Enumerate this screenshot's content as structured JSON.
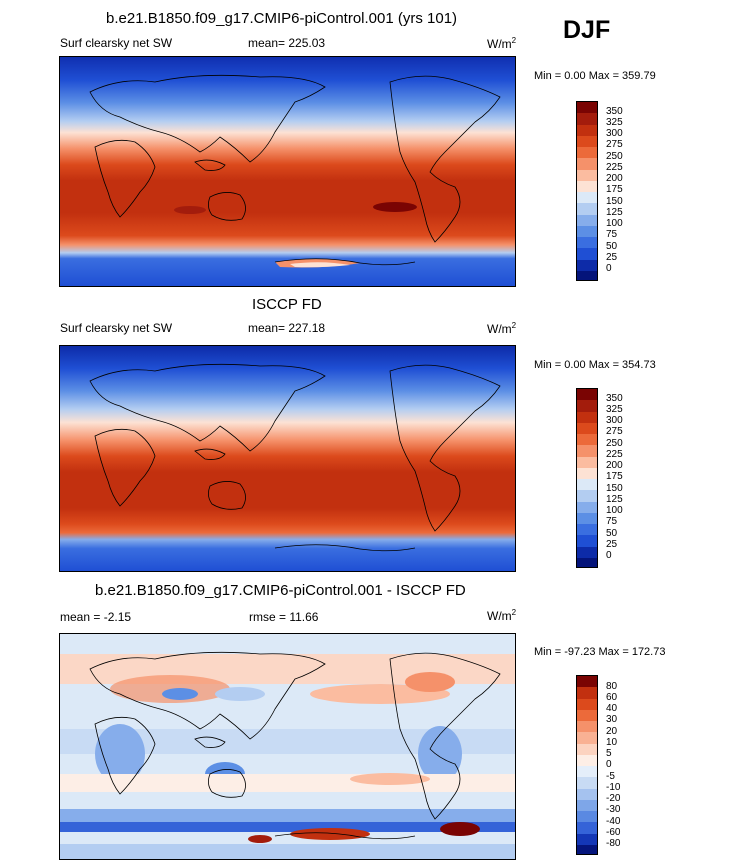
{
  "season": "DJF",
  "panels": [
    {
      "title": "b.e21.B1850.f09_g17.CMIP6-piControl.001 (yrs 101)",
      "left_label": "Surf clearsky net SW",
      "center_label": "mean= 225.03",
      "units": "W/m",
      "units_sup": "2",
      "minmax": "Min =   0.00 Max = 359.79",
      "colorbar": {
        "labels": [
          "350",
          "325",
          "300",
          "275",
          "250",
          "225",
          "200",
          "175",
          "150",
          "125",
          "100",
          "75",
          "50",
          "25",
          "0"
        ],
        "colors": [
          "#7a0403",
          "#a31c0c",
          "#c2300f",
          "#dc4a1c",
          "#ec6a3a",
          "#f5916a",
          "#fbbca0",
          "#fde2d4",
          "#dce9f7",
          "#b3cdf1",
          "#86adeb",
          "#5c8fe5",
          "#3a6ee0",
          "#1f4fd4",
          "#0d2ba8",
          "#04147a"
        ]
      }
    },
    {
      "title": "ISCCP FD",
      "left_label": "Surf clearsky net SW",
      "center_label": "mean= 227.18",
      "units": "W/m",
      "units_sup": "2",
      "minmax": "Min =   0.00 Max = 354.73",
      "colorbar": {
        "labels": [
          "350",
          "325",
          "300",
          "275",
          "250",
          "225",
          "200",
          "175",
          "150",
          "125",
          "100",
          "75",
          "50",
          "25",
          "0"
        ],
        "colors": [
          "#7a0403",
          "#a31c0c",
          "#c2300f",
          "#dc4a1c",
          "#ec6a3a",
          "#f5916a",
          "#fbbca0",
          "#fde2d4",
          "#dce9f7",
          "#b3cdf1",
          "#86adeb",
          "#5c8fe5",
          "#3a6ee0",
          "#1f4fd4",
          "#0d2ba8",
          "#04147a"
        ]
      }
    },
    {
      "title": "b.e21.B1850.f09_g17.CMIP6-piControl.001 - ISCCP FD",
      "left_label": "mean =  -2.15",
      "center_label": "rmse =  11.66",
      "units": "W/m",
      "units_sup": "2",
      "minmax": "Min = -97.23 Max = 172.73",
      "colorbar": {
        "labels": [
          "80",
          "60",
          "40",
          "30",
          "20",
          "10",
          "5",
          "0",
          "-5",
          "-10",
          "-20",
          "-30",
          "-40",
          "-60",
          "-80"
        ],
        "colors": [
          "#7a0403",
          "#c2300f",
          "#dc4a1c",
          "#ec6a3a",
          "#f5916a",
          "#f9b193",
          "#fcd3c0",
          "#fdeee6",
          "#e4eefa",
          "#c8dbf4",
          "#a5c2ef",
          "#7ea6e8",
          "#5a89e2",
          "#3563d8",
          "#1437b6",
          "#05157c"
        ]
      }
    }
  ]
}
